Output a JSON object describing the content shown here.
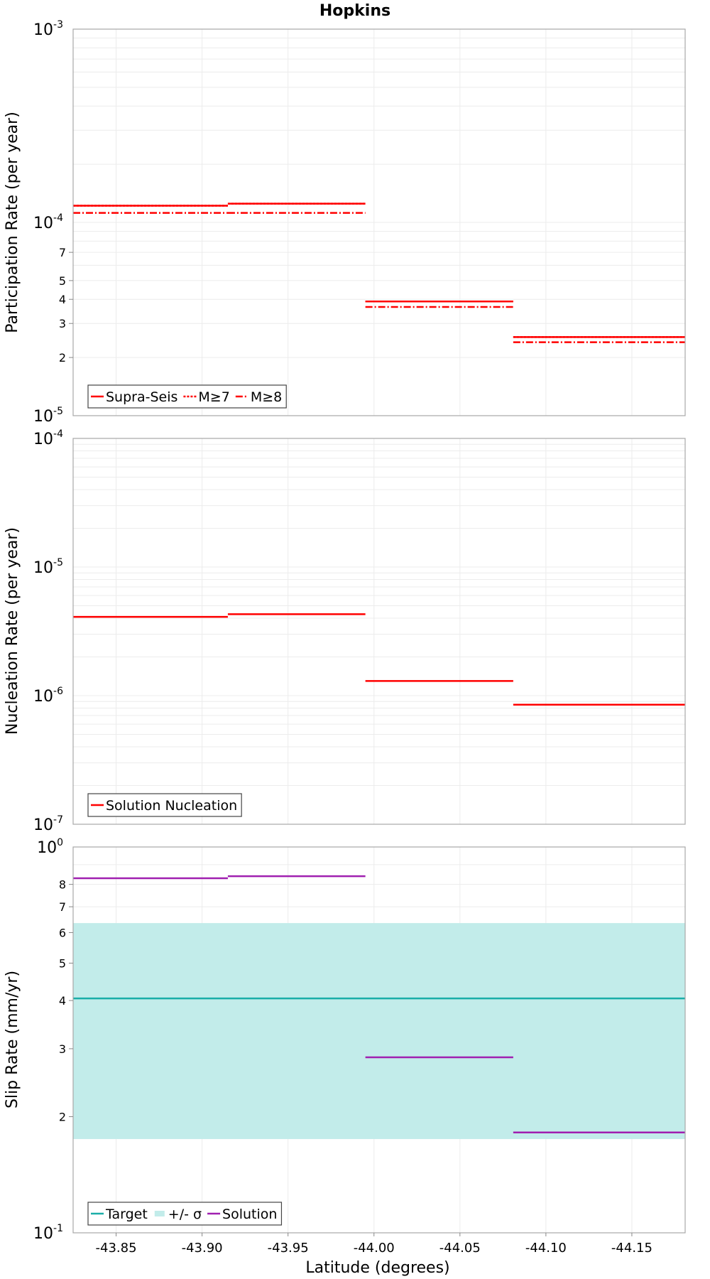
{
  "title": "Hopkins",
  "xlabel": "Latitude (degrees)",
  "x_ticks": [
    "-43.85",
    "-43.90",
    "-43.95",
    "-44.00",
    "-44.05",
    "-44.10",
    "-44.15"
  ],
  "chart_data": [
    {
      "type": "line",
      "ylabel": "Participation Rate (per year)",
      "yscale": "log",
      "ylim": [
        1e-05,
        0.001
      ],
      "xlim": [
        -43.825,
        -44.181
      ],
      "y_major_ticks": [
        {
          "base": "10",
          "exp": "-5"
        },
        {
          "base": "10",
          "exp": "-4"
        },
        {
          "base": "10",
          "exp": "-3"
        }
      ],
      "y_minor_tick_labels": [
        "2",
        "3",
        "4",
        "5",
        "7"
      ],
      "legend": [
        "Supra-Seis",
        "M≥7",
        "M≥8"
      ],
      "legend_position": "bottom-left",
      "series": [
        {
          "name": "Supra-Seis",
          "style": "solid",
          "color": "#ff0000",
          "segments": [
            [
              -43.825,
              -43.915,
              0.000122
            ],
            [
              -43.915,
              -43.995,
              0.000125
            ],
            [
              -43.995,
              -44.081,
              3.9e-05
            ],
            [
              -44.081,
              -44.181,
              2.55e-05
            ]
          ]
        },
        {
          "name": "M≥7",
          "style": "dotted",
          "color": "#ff0000",
          "segments": [
            [
              -43.825,
              -43.915,
              0.000122
            ],
            [
              -43.915,
              -43.995,
              0.000125
            ],
            [
              -43.995,
              -44.081,
              3.9e-05
            ],
            [
              -44.081,
              -44.181,
              2.55e-05
            ]
          ]
        },
        {
          "name": "M≥8",
          "style": "dashdot",
          "color": "#ff0000",
          "segments": [
            [
              -43.825,
              -43.915,
              0.000112
            ],
            [
              -43.915,
              -43.995,
              0.000112
            ],
            [
              -43.995,
              -44.081,
              3.65e-05
            ],
            [
              -44.081,
              -44.181,
              2.4e-05
            ]
          ]
        }
      ]
    },
    {
      "type": "line",
      "ylabel": "Nucleation Rate (per year)",
      "yscale": "log",
      "ylim": [
        1e-07,
        0.0001
      ],
      "xlim": [
        -43.825,
        -44.181
      ],
      "y_major_ticks": [
        {
          "base": "10",
          "exp": "-7"
        },
        {
          "base": "10",
          "exp": "-6"
        },
        {
          "base": "10",
          "exp": "-5"
        },
        {
          "base": "10",
          "exp": "-4"
        }
      ],
      "y_minor_tick_labels": [],
      "legend": [
        "Solution Nucleation"
      ],
      "legend_position": "bottom-left",
      "series": [
        {
          "name": "Solution Nucleation",
          "style": "solid",
          "color": "#ff0000",
          "segments": [
            [
              -43.825,
              -43.915,
              4.1e-06
            ],
            [
              -43.915,
              -43.995,
              4.3e-06
            ],
            [
              -43.995,
              -44.081,
              1.3e-06
            ],
            [
              -44.081,
              -44.181,
              8.5e-07
            ]
          ]
        }
      ]
    },
    {
      "type": "line",
      "ylabel": "Slip Rate (mm/yr)",
      "yscale": "log",
      "ylim": [
        0.1,
        1.0
      ],
      "xlim": [
        -43.825,
        -44.181
      ],
      "y_major_ticks": [
        {
          "base": "10",
          "exp": "-1"
        },
        {
          "base": "10",
          "exp": "0"
        }
      ],
      "y_minor_tick_labels": [
        "2",
        "3",
        "4",
        "5",
        "6",
        "7",
        "8"
      ],
      "legend": [
        "Target",
        "+/- σ",
        "Solution"
      ],
      "legend_position": "bottom-left",
      "band": {
        "name": "+/- σ",
        "low": 0.175,
        "high": 0.635,
        "color": "#c2ecea"
      },
      "series": [
        {
          "name": "Target",
          "style": "solid",
          "color": "#1aaea8",
          "segments": [
            [
              -43.825,
              -44.181,
              0.405
            ]
          ]
        },
        {
          "name": "Solution",
          "style": "solid",
          "color": "#a020b0",
          "segments": [
            [
              -43.825,
              -43.915,
              0.83
            ],
            [
              -43.915,
              -43.995,
              0.84
            ],
            [
              -43.995,
              -44.081,
              0.285
            ],
            [
              -44.081,
              -44.181,
              0.182
            ]
          ]
        }
      ]
    }
  ]
}
